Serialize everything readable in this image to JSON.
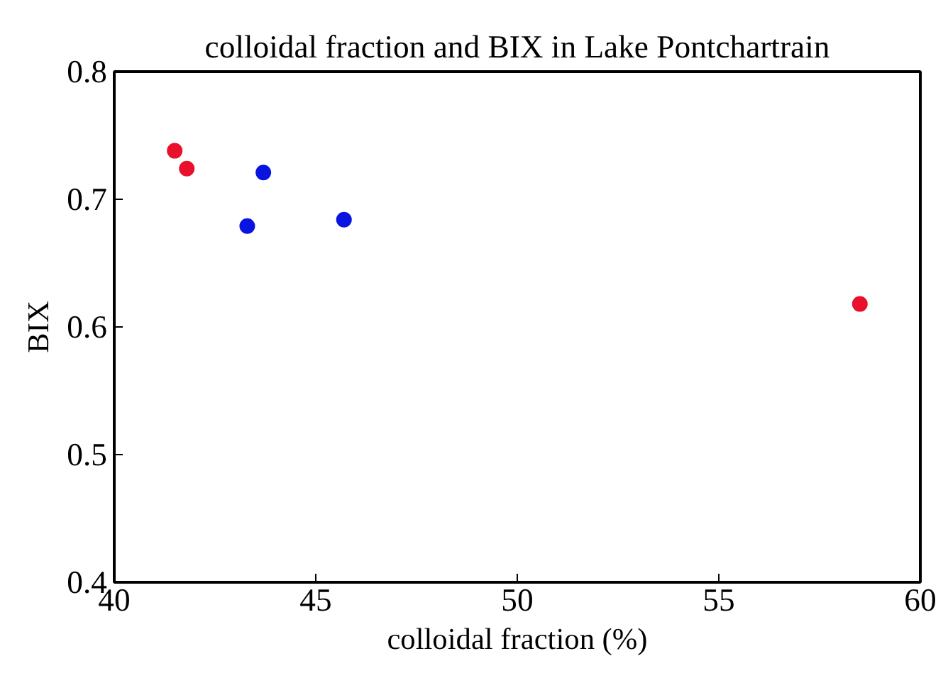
{
  "chart_data": {
    "type": "scatter",
    "title": "colloidal fraction and BIX in Lake Pontchartrain",
    "xlabel": "colloidal fraction (%)",
    "ylabel": "BIX",
    "series": [
      {
        "color": "#e8102a",
        "x": [
          41.5,
          41.8,
          58.5
        ],
        "values": [
          0.738,
          0.724,
          0.618
        ]
      },
      {
        "color": "#0a14e0",
        "x": [
          43.7,
          43.3,
          45.7
        ],
        "values": [
          0.721,
          0.679,
          0.684
        ]
      }
    ],
    "xlim": [
      40,
      60
    ],
    "xticks": [
      40,
      45,
      50,
      55,
      60
    ],
    "ylim": [
      0.4,
      0.8
    ],
    "yticks": [
      0.4,
      0.5,
      0.6,
      0.7,
      0.8
    ],
    "marker": "circle"
  }
}
